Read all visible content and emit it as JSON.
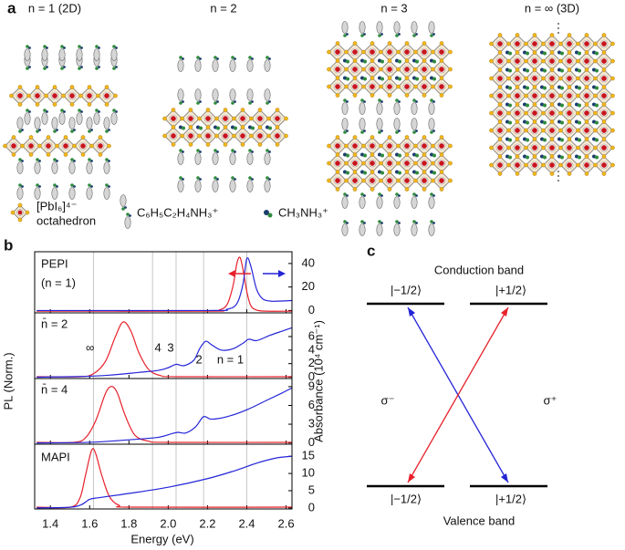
{
  "figure": {
    "panel_labels": [
      "a",
      "b",
      "c"
    ]
  },
  "structures": {
    "titles": [
      "n = 1 (2D)",
      "n = 2",
      "n = 3",
      "n = ∞ (3D)"
    ],
    "legend": {
      "octahedron": [
        "[PbI₆]⁴⁻",
        "octahedron"
      ],
      "organic": "C₆H₅C₂H₄NH₃⁺",
      "methylammonium": "CH₃NH₃⁺"
    }
  },
  "chart_data": {
    "type": "line",
    "xlabel": "Energy (eV)",
    "ylabel": "PL (Norm.)",
    "y2label": "Absorbance (10⁴ cm⁻¹)",
    "xlim": [
      1.32,
      2.63
    ],
    "xticks": [
      1.4,
      1.6,
      1.8,
      {
        "value": 2,
        "label": "2.0"
      },
      2.2,
      2.4,
      2.6
    ],
    "reference_lines": [
      1.62,
      1.92,
      2.04,
      2.18,
      2.4
    ],
    "panels": [
      {
        "labels": [
          "PEPI",
          "(n = 1)"
        ],
        "ylim": [
          -0.03,
          1.05
        ],
        "y2lim": [
          -2,
          50
        ],
        "y2ticks": [
          0,
          20,
          40
        ],
        "series": [
          {
            "color": "#e8202a",
            "x": [
              1.33,
              2.2,
              2.26,
              2.3,
              2.33,
              2.35,
              2.365,
              2.38,
              2.4,
              2.42,
              2.45,
              2.5,
              2.63
            ],
            "values": [
              0,
              0,
              0.02,
              0.12,
              0.45,
              0.85,
              0.95,
              0.75,
              0.35,
              0.1,
              0.02,
              0,
              0
            ]
          },
          {
            "color": "#2424d8",
            "axis": "y2",
            "x": [
              1.33,
              2.2,
              2.3,
              2.35,
              2.38,
              2.4,
              2.42,
              2.45,
              2.48,
              2.52,
              2.56,
              2.63
            ],
            "values": [
              0,
              0,
              1,
              6,
              22,
              44,
              38,
              18,
              10,
              8,
              8,
              8.5
            ]
          }
        ]
      },
      {
        "labels": [
          "n̄ = 2"
        ],
        "peak_labels": [
          "∞",
          "4",
          "3",
          "2",
          "n = 1"
        ],
        "ylim": [
          -0.03,
          1.05
        ],
        "y2lim": [
          -0.2,
          9.5
        ],
        "y2ticks": [
          0,
          2,
          4,
          6
        ],
        "series": [
          {
            "color": "#e8202a",
            "x": [
              1.33,
              1.55,
              1.62,
              1.68,
              1.73,
              1.77,
              1.81,
              1.85,
              1.9,
              1.96,
              2.05,
              2.63
            ],
            "values": [
              0,
              0,
              0.05,
              0.25,
              0.65,
              0.9,
              0.75,
              0.4,
              0.12,
              0.02,
              0,
              0
            ]
          },
          {
            "color": "#2424d8",
            "axis": "y2",
            "x": [
              1.33,
              1.55,
              1.7,
              1.85,
              1.95,
              2.0,
              2.04,
              2.08,
              2.13,
              2.16,
              2.19,
              2.22,
              2.27,
              2.33,
              2.38,
              2.41,
              2.45,
              2.52,
              2.58,
              2.63
            ],
            "values": [
              0,
              0.1,
              0.3,
              0.7,
              1.0,
              1.4,
              1.9,
              1.7,
              2.5,
              4.2,
              5.3,
              4.8,
              4.0,
              4.2,
              5.0,
              5.6,
              5.4,
              6.2,
              6.8,
              7.3
            ]
          }
        ]
      },
      {
        "labels": [
          "n̄ = 4"
        ],
        "ylim": [
          -0.03,
          1.05
        ],
        "y2lim": [
          -0.2,
          10.3
        ],
        "y2ticks": [
          0,
          3,
          6,
          9
        ],
        "series": [
          {
            "color": "#e8202a",
            "x": [
              1.33,
              1.52,
              1.58,
              1.63,
              1.68,
              1.71,
              1.74,
              1.78,
              1.83,
              1.9,
              2.0,
              2.63
            ],
            "values": [
              0,
              0,
              0.08,
              0.35,
              0.8,
              0.92,
              0.82,
              0.45,
              0.12,
              0.02,
              0,
              0
            ]
          },
          {
            "color": "#2424d8",
            "axis": "y2",
            "x": [
              1.33,
              1.6,
              1.8,
              1.95,
              2.02,
              2.05,
              2.09,
              2.14,
              2.18,
              2.22,
              2.3,
              2.4,
              2.5,
              2.58,
              2.63
            ],
            "values": [
              0,
              0.1,
              0.5,
              0.9,
              1.5,
              1.7,
              1.6,
              2.6,
              4.2,
              3.8,
              4.2,
              5.3,
              6.8,
              8.0,
              8.8
            ]
          }
        ]
      },
      {
        "labels": [
          "MAPI"
        ],
        "ylim": [
          -0.03,
          1.05
        ],
        "y2lim": [
          -0.3,
          18.5
        ],
        "y2ticks": [
          0,
          5,
          10,
          15
        ],
        "series": [
          {
            "color": "#e8202a",
            "x": [
              1.33,
              1.5,
              1.55,
              1.58,
              1.61,
              1.63,
              1.66,
              1.7,
              1.75,
              1.82,
              2.63
            ],
            "values": [
              0,
              0,
              0.15,
              0.55,
              0.95,
              0.9,
              0.55,
              0.18,
              0.03,
              0,
              0
            ]
          },
          {
            "color": "#2424d8",
            "axis": "y2",
            "x": [
              1.33,
              1.5,
              1.56,
              1.6,
              1.65,
              1.8,
              2.0,
              2.2,
              2.35,
              2.45,
              2.55,
              2.63
            ],
            "values": [
              0,
              0.2,
              1.0,
              2.5,
              3.0,
              4.2,
              6.0,
              8.5,
              11,
              13,
              14.5,
              15
            ]
          }
        ]
      }
    ]
  },
  "diagram": {
    "conduction_band": "Conduction band",
    "valence_band": "Valence band",
    "upper_states": [
      "|−1/2⟩",
      "|+1/2⟩"
    ],
    "lower_states": [
      "|−1/2⟩",
      "|+1/2⟩"
    ],
    "transitions": [
      "σ⁻",
      "σ⁺"
    ]
  }
}
